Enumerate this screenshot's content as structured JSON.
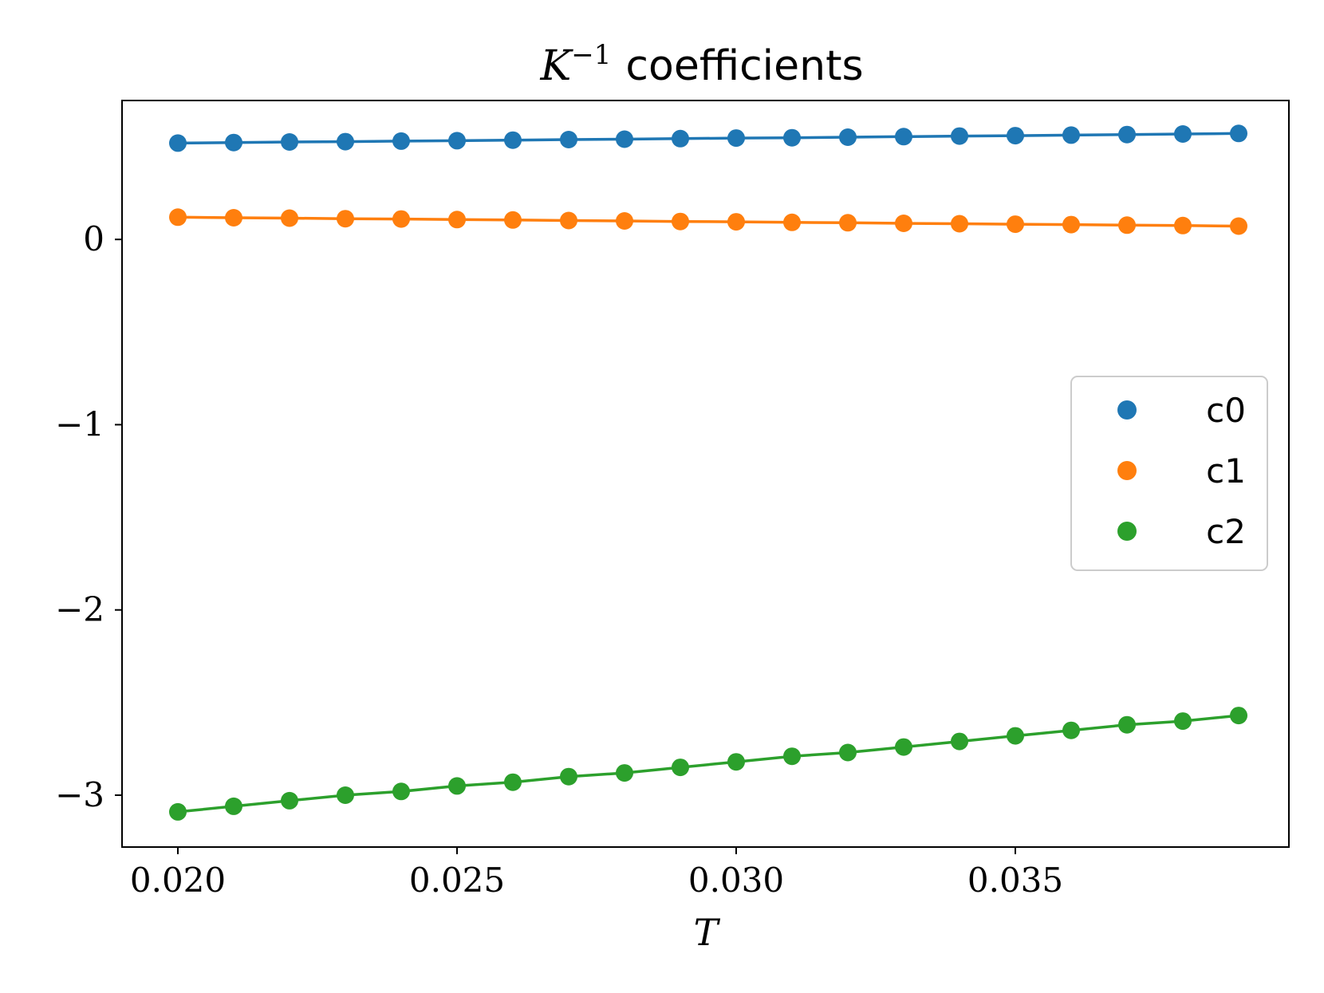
{
  "chart_data": {
    "type": "line",
    "title": {
      "math": "K",
      "superscript": "−1",
      "text": "coefficients"
    },
    "xlabel": "T",
    "ylabel": "",
    "xlim": [
      0.019,
      0.0399
    ],
    "ylim": [
      -3.28,
      0.75
    ],
    "xticks": [
      {
        "value": 0.02,
        "label": "0.020"
      },
      {
        "value": 0.025,
        "label": "0.025"
      },
      {
        "value": 0.03,
        "label": "0.030"
      },
      {
        "value": 0.035,
        "label": "0.035"
      }
    ],
    "yticks": [
      {
        "value": 0,
        "label": "0"
      },
      {
        "value": -1,
        "label": "−1"
      },
      {
        "value": -2,
        "label": "−2"
      },
      {
        "value": -3,
        "label": "−3"
      }
    ],
    "grid": false,
    "legend_position": "center-right",
    "x": [
      0.02,
      0.021,
      0.022,
      0.023,
      0.024,
      0.025,
      0.026,
      0.027,
      0.028,
      0.029,
      0.03,
      0.031,
      0.032,
      0.033,
      0.034,
      0.035,
      0.036,
      0.037,
      0.038,
      0.039
    ],
    "series": [
      {
        "name": "c0",
        "color": "#1f77b4",
        "values": [
          0.52,
          0.523,
          0.526,
          0.528,
          0.531,
          0.533,
          0.536,
          0.539,
          0.541,
          0.544,
          0.547,
          0.549,
          0.552,
          0.555,
          0.558,
          0.56,
          0.563,
          0.566,
          0.569,
          0.572
        ]
      },
      {
        "name": "c1",
        "color": "#ff7f0e",
        "values": [
          0.12,
          0.117,
          0.115,
          0.112,
          0.11,
          0.107,
          0.105,
          0.102,
          0.1,
          0.097,
          0.095,
          0.092,
          0.09,
          0.087,
          0.085,
          0.082,
          0.08,
          0.077,
          0.075,
          0.072
        ]
      },
      {
        "name": "c2",
        "color": "#2ca02c",
        "values": [
          -3.09,
          -3.06,
          -3.03,
          -3.0,
          -2.98,
          -2.95,
          -2.93,
          -2.9,
          -2.88,
          -2.85,
          -2.82,
          -2.79,
          -2.77,
          -2.74,
          -2.71,
          -2.68,
          -2.65,
          -2.62,
          -2.6,
          -2.57
        ]
      }
    ]
  }
}
